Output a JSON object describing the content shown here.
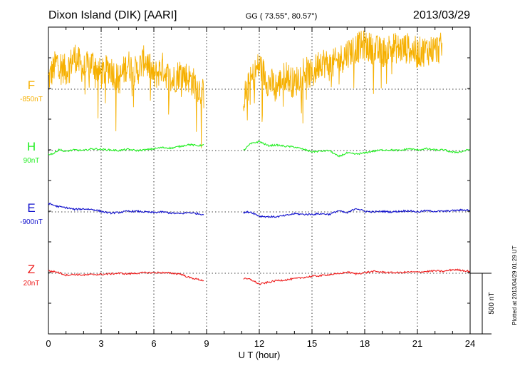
{
  "header": {
    "station": "Dixon Island (DIK)  [AARI]",
    "coords": "GG ( 73.55°,  80.57°)",
    "date": "2013/03/29"
  },
  "footer": {
    "plotted": "Plotted at 2013/04/29 01:29 UT"
  },
  "chart_data": {
    "type": "line",
    "title": "Dixon Island (DIK)  [AARI]",
    "xlabel": "U T (hour)",
    "ylabel": "",
    "xlim": [
      0,
      24
    ],
    "x_ticks": [
      0,
      3,
      6,
      9,
      12,
      15,
      18,
      21,
      24
    ],
    "x_tick_labels": [
      "0",
      "3",
      "6",
      "9",
      "12",
      "15",
      "18",
      "21",
      "24"
    ],
    "scale_bar_label": "500 nT",
    "scale_bar_nT": 500,
    "grid": true,
    "data_gap_hours": [
      8.85,
      11.1
    ],
    "series": [
      {
        "name": "F",
        "baseline_label": "-850nT",
        "color": "#f6b000",
        "style": "noisy",
        "points": [
          [
            0,
            80
          ],
          [
            0.5,
            230
          ],
          [
            1,
            150
          ],
          [
            1.5,
            270
          ],
          [
            2,
            160
          ],
          [
            2.5,
            220
          ],
          [
            3,
            120
          ],
          [
            3.5,
            180
          ],
          [
            4,
            70
          ],
          [
            4.5,
            210
          ],
          [
            5,
            140
          ],
          [
            5.5,
            250
          ],
          [
            6,
            100
          ],
          [
            6.5,
            180
          ],
          [
            7,
            60
          ],
          [
            7.5,
            140
          ],
          [
            8,
            90
          ],
          [
            8.5,
            20
          ],
          [
            8.8,
            -40
          ],
          [
            11.1,
            -80
          ],
          [
            11.5,
            60
          ],
          [
            12,
            200
          ],
          [
            12.5,
            60
          ],
          [
            13,
            20
          ],
          [
            13.5,
            120
          ],
          [
            14,
            40
          ],
          [
            14.5,
            160
          ],
          [
            15,
            110
          ],
          [
            15.5,
            240
          ],
          [
            16,
            190
          ],
          [
            16.5,
            230
          ],
          [
            17,
            300
          ],
          [
            17.5,
            340
          ],
          [
            18,
            360
          ],
          [
            18.5,
            330
          ],
          [
            19,
            300
          ],
          [
            19.5,
            350
          ],
          [
            20,
            330
          ],
          [
            20.5,
            340
          ],
          [
            21,
            300
          ],
          [
            21.5,
            320
          ],
          [
            22,
            330
          ],
          [
            22.4,
            340
          ]
        ]
      },
      {
        "name": "H",
        "baseline_label": "90nT",
        "color": "#22ee22",
        "style": "smooth",
        "points": [
          [
            0,
            -30
          ],
          [
            0.3,
            -25
          ],
          [
            0.6,
            10
          ],
          [
            1,
            -10
          ],
          [
            1.2,
            0
          ],
          [
            1.5,
            5
          ],
          [
            2,
            0
          ],
          [
            2.5,
            15
          ],
          [
            3,
            10
          ],
          [
            3.5,
            5
          ],
          [
            4,
            0
          ],
          [
            4.5,
            10
          ],
          [
            5,
            0
          ],
          [
            5.5,
            5
          ],
          [
            6,
            15
          ],
          [
            6.5,
            25
          ],
          [
            7,
            20
          ],
          [
            7.5,
            35
          ],
          [
            8,
            50
          ],
          [
            8.5,
            40
          ],
          [
            8.8,
            45
          ],
          [
            11.1,
            0
          ],
          [
            11.5,
            55
          ],
          [
            12,
            75
          ],
          [
            12.5,
            40
          ],
          [
            13,
            45
          ],
          [
            13.5,
            35
          ],
          [
            14,
            30
          ],
          [
            14.5,
            10
          ],
          [
            15,
            -10
          ],
          [
            15.5,
            -5
          ],
          [
            16,
            0
          ],
          [
            16.5,
            -50
          ],
          [
            17,
            -20
          ],
          [
            17.5,
            -30
          ],
          [
            18,
            -20
          ],
          [
            18.5,
            -5
          ],
          [
            19,
            5
          ],
          [
            19.5,
            5
          ],
          [
            20,
            0
          ],
          [
            20.5,
            15
          ],
          [
            21,
            5
          ],
          [
            21.5,
            15
          ],
          [
            22,
            5
          ],
          [
            22.5,
            5
          ],
          [
            23,
            -15
          ],
          [
            23.5,
            -10
          ],
          [
            24,
            10
          ]
        ]
      },
      {
        "name": "E",
        "baseline_label": "-900nT",
        "color": "#1010cc",
        "style": "smooth",
        "points": [
          [
            0,
            70
          ],
          [
            0.5,
            45
          ],
          [
            1,
            35
          ],
          [
            1.5,
            20
          ],
          [
            2,
            25
          ],
          [
            2.5,
            20
          ],
          [
            3,
            5
          ],
          [
            3.5,
            -10
          ],
          [
            4,
            -5
          ],
          [
            4.5,
            5
          ],
          [
            5,
            5
          ],
          [
            5.5,
            0
          ],
          [
            6,
            -5
          ],
          [
            6.5,
            0
          ],
          [
            7,
            -10
          ],
          [
            7.5,
            -15
          ],
          [
            8,
            -5
          ],
          [
            8.5,
            -15
          ],
          [
            8.8,
            -20
          ],
          [
            11.1,
            -5
          ],
          [
            11.5,
            0
          ],
          [
            12,
            -35
          ],
          [
            12.5,
            -40
          ],
          [
            13,
            -40
          ],
          [
            13.5,
            -30
          ],
          [
            14,
            -15
          ],
          [
            14.5,
            -20
          ],
          [
            15,
            -20
          ],
          [
            15.5,
            -15
          ],
          [
            16,
            -20
          ],
          [
            16.5,
            10
          ],
          [
            17,
            -10
          ],
          [
            17.5,
            30
          ],
          [
            18,
            5
          ],
          [
            18.5,
            0
          ],
          [
            19,
            5
          ],
          [
            19.5,
            0
          ],
          [
            20,
            5
          ],
          [
            20.5,
            10
          ],
          [
            21,
            0
          ],
          [
            21.5,
            10
          ],
          [
            22,
            5
          ],
          [
            22.5,
            5
          ],
          [
            23,
            10
          ],
          [
            23.5,
            15
          ],
          [
            24,
            15
          ]
        ]
      },
      {
        "name": "Z",
        "baseline_label": "20nT",
        "color": "#ee1c1c",
        "style": "smooth",
        "points": [
          [
            0,
            20
          ],
          [
            0.5,
            10
          ],
          [
            1,
            -15
          ],
          [
            1.5,
            -10
          ],
          [
            2,
            -15
          ],
          [
            2.5,
            -10
          ],
          [
            3,
            -10
          ],
          [
            3.5,
            -5
          ],
          [
            4,
            0
          ],
          [
            4.5,
            -5
          ],
          [
            5,
            0
          ],
          [
            5.5,
            5
          ],
          [
            6,
            5
          ],
          [
            6.5,
            5
          ],
          [
            7,
            0
          ],
          [
            7.5,
            -5
          ],
          [
            8,
            -35
          ],
          [
            8.5,
            -50
          ],
          [
            8.8,
            -60
          ],
          [
            11.1,
            -45
          ],
          [
            11.5,
            -50
          ],
          [
            12,
            -90
          ],
          [
            12.5,
            -75
          ],
          [
            13,
            -60
          ],
          [
            13.5,
            -55
          ],
          [
            14,
            -45
          ],
          [
            14.5,
            -35
          ],
          [
            15,
            -25
          ],
          [
            15.5,
            -20
          ],
          [
            16,
            -10
          ],
          [
            16.5,
            -5
          ],
          [
            17,
            10
          ],
          [
            17.5,
            -5
          ],
          [
            18,
            5
          ],
          [
            18.5,
            15
          ],
          [
            19,
            10
          ],
          [
            19.5,
            5
          ],
          [
            20,
            5
          ],
          [
            20.5,
            10
          ],
          [
            21,
            10
          ],
          [
            21.5,
            15
          ],
          [
            22,
            20
          ],
          [
            22.5,
            15
          ],
          [
            23,
            30
          ],
          [
            23.5,
            25
          ],
          [
            24,
            15
          ]
        ]
      }
    ]
  }
}
